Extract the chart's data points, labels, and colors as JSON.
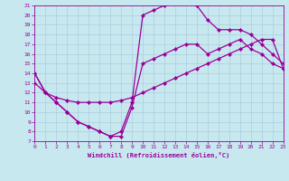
{
  "xlabel": "Windchill (Refroidissement éolien,°C)",
  "xlim": [
    0,
    23
  ],
  "ylim": [
    7,
    21
  ],
  "xtick_labels": [
    "0",
    "1",
    "2",
    "3",
    "4",
    "5",
    "6",
    "7",
    "8",
    "9",
    "10",
    "11",
    "12",
    "13",
    "14",
    "15",
    "16",
    "17",
    "18",
    "19",
    "20",
    "21",
    "22",
    "23"
  ],
  "ytick_labels": [
    "7",
    "8",
    "9",
    "10",
    "11",
    "12",
    "13",
    "14",
    "15",
    "16",
    "17",
    "18",
    "19",
    "20",
    "21"
  ],
  "line_color": "#990099",
  "bg_color": "#c8e8f0",
  "grid_color": "#aaccdd",
  "line_width": 0.9,
  "marker": "D",
  "marker_size": 2.2,
  "series": [
    {
      "x": [
        0,
        1,
        2,
        3,
        4,
        5,
        6,
        7,
        8,
        9,
        10,
        11,
        12,
        13,
        14,
        15,
        16,
        17,
        18,
        19,
        20,
        21,
        22,
        23
      ],
      "y": [
        13.0,
        12.0,
        11.5,
        11.2,
        11.0,
        11.0,
        11.0,
        11.0,
        11.2,
        11.5,
        12.0,
        12.5,
        13.0,
        13.5,
        14.0,
        14.5,
        15.0,
        15.5,
        16.0,
        16.5,
        17.0,
        17.5,
        17.5,
        14.5
      ]
    },
    {
      "x": [
        0,
        1,
        2,
        3,
        4,
        5,
        6,
        7,
        8,
        9,
        10,
        11,
        12,
        13,
        14,
        15,
        16,
        17,
        18,
        19,
        20,
        21,
        22,
        23
      ],
      "y": [
        14.0,
        12.0,
        11.0,
        10.0,
        9.0,
        8.5,
        8.0,
        7.5,
        8.0,
        11.0,
        20.0,
        20.5,
        21.0,
        21.5,
        21.5,
        21.0,
        19.5,
        18.5,
        18.5,
        18.5,
        18.0,
        17.0,
        16.0,
        15.0
      ]
    },
    {
      "x": [
        0,
        1,
        2,
        3,
        4,
        5,
        6,
        7,
        8,
        9,
        10,
        11,
        12,
        13,
        14,
        15,
        16,
        17,
        18,
        19,
        20,
        21,
        22,
        23
      ],
      "y": [
        14.0,
        12.0,
        11.0,
        10.0,
        9.0,
        8.5,
        8.0,
        7.5,
        7.5,
        10.5,
        15.0,
        15.5,
        16.0,
        16.5,
        17.0,
        17.0,
        16.0,
        16.5,
        17.0,
        17.5,
        16.5,
        16.0,
        15.0,
        14.5
      ]
    }
  ]
}
